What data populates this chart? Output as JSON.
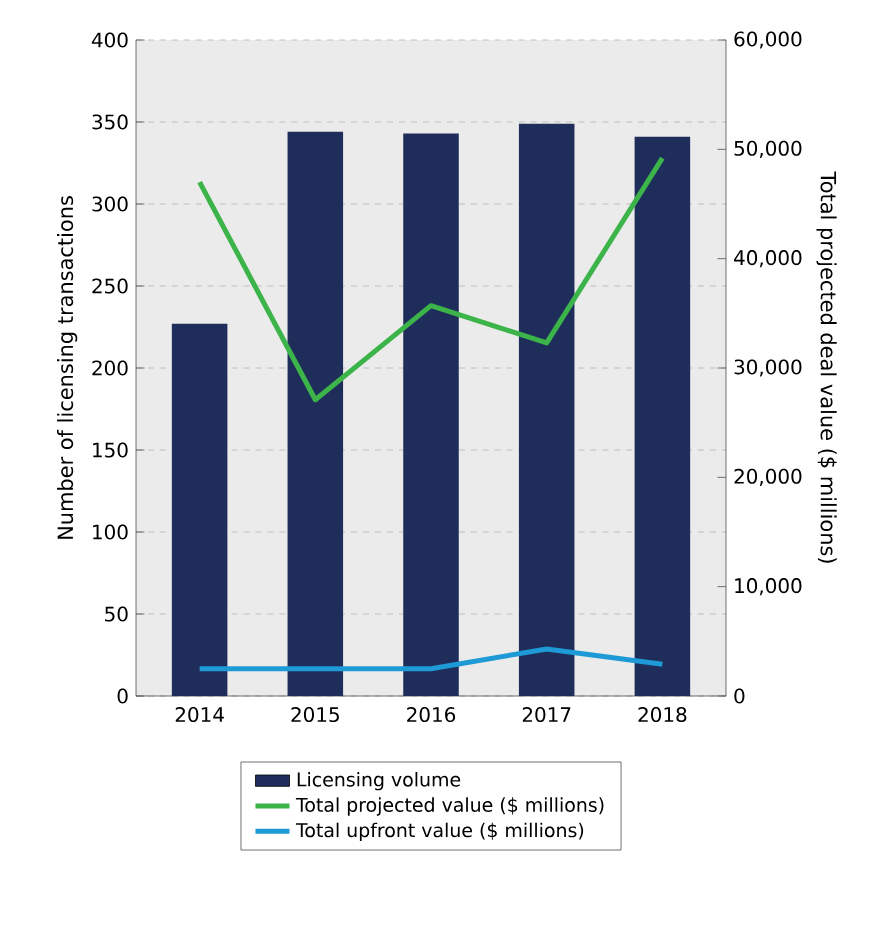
{
  "chart_data": {
    "type": "bar",
    "ylabel": "Number of licensing transactions",
    "y2label": "Total  projected deal value ($ millions)",
    "categories": [
      "2014",
      "2015",
      "2016",
      "2017",
      "2018"
    ],
    "series": [
      {
        "name": "Licensing volume",
        "color": "#1f2d5a",
        "values": [
          227,
          344,
          343,
          349,
          341
        ]
      },
      {
        "name": "Total projected value ($ millions)",
        "type": "line",
        "axis": "y2",
        "color": "#3cb44a",
        "values": [
          47000,
          27100,
          35700,
          32300,
          49200
        ]
      },
      {
        "name": "Total upfront value ($ millions)",
        "type": "line",
        "axis": "y2",
        "color": "#1e9ad6",
        "values": [
          2500,
          2500,
          2500,
          4300,
          2900
        ]
      }
    ],
    "ylim": [
      0,
      400
    ],
    "yticks": [
      0,
      50,
      100,
      150,
      200,
      250,
      300,
      350,
      400
    ],
    "y2lim": [
      0,
      60000
    ],
    "y2ticks": [
      {
        "value": 0,
        "label": "0"
      },
      {
        "value": 10000,
        "label": "10,000"
      },
      {
        "value": 20000,
        "label": "20,000"
      },
      {
        "value": 30000,
        "label": "30,000"
      },
      {
        "value": 40000,
        "label": "40,000"
      },
      {
        "value": 50000,
        "label": "50,000"
      },
      {
        "value": 60000,
        "label": "60,000"
      }
    ],
    "grid": "y",
    "legend": "bottom"
  }
}
